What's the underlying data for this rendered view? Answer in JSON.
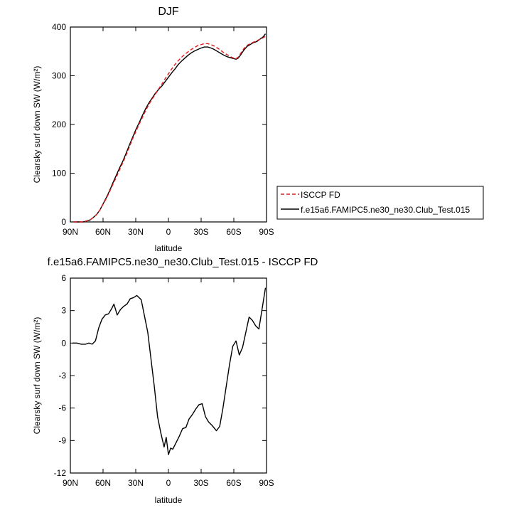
{
  "chart_data": [
    {
      "type": "line",
      "title": "DJF",
      "xlabel": "latitude",
      "ylabel": "Clearsky surf down SW (W/m²)",
      "xlim": [
        90,
        -90
      ],
      "ylim": [
        0,
        400
      ],
      "x_ticks": [
        90,
        60,
        30,
        0,
        -30,
        -60,
        -90
      ],
      "x_tick_labels": [
        "90N",
        "60N",
        "30N",
        "0",
        "30S",
        "60S",
        "90S"
      ],
      "y_ticks": [
        0,
        100,
        200,
        300,
        400
      ],
      "y_tick_labels": [
        "0",
        "100",
        "200",
        "300",
        "400"
      ],
      "legend_position": "right",
      "series": [
        {
          "name": "ISCCP FD",
          "color": "#e41a1c",
          "dash": "dashed",
          "x": [
            87,
            84,
            81,
            78,
            75,
            72,
            69,
            66,
            63,
            60,
            57,
            54,
            51,
            48,
            45,
            42,
            39,
            36,
            33,
            30,
            27,
            24,
            21,
            18,
            15,
            12,
            9,
            6,
            3,
            0,
            -3,
            -6,
            -9,
            -12,
            -15,
            -18,
            -21,
            -24,
            -27,
            -30,
            -33,
            -36,
            -39,
            -42,
            -45,
            -48,
            -51,
            -54,
            -57,
            -60,
            -62,
            -64,
            -66,
            -69,
            -72,
            -75,
            -78,
            -81,
            -84,
            -87,
            -89
          ],
          "y": [
            0,
            0,
            0,
            0,
            2,
            4,
            9,
            15,
            24,
            36,
            48,
            62,
            77,
            91,
            106,
            121,
            136,
            153,
            170,
            185,
            200,
            214,
            228,
            241,
            252,
            262,
            273,
            283,
            294,
            304,
            314,
            323,
            331,
            338,
            344,
            349,
            354,
            358,
            362,
            364,
            366,
            366,
            364,
            361,
            357,
            352,
            347,
            343,
            339,
            336,
            335,
            338,
            345,
            355,
            362,
            366,
            369,
            372,
            375,
            378,
            381
          ]
        },
        {
          "name": "f.e15a6.FAMIPC5.ne30_ne30.Club_Test.015",
          "color": "#000000",
          "dash": "solid",
          "x": [
            87,
            84,
            81,
            78,
            75,
            72,
            69,
            66,
            63,
            60,
            57,
            54,
            51,
            48,
            45,
            42,
            39,
            36,
            33,
            30,
            27,
            24,
            21,
            18,
            15,
            12,
            9,
            6,
            3,
            0,
            -3,
            -6,
            -9,
            -12,
            -15,
            -18,
            -21,
            -24,
            -27,
            -30,
            -33,
            -36,
            -39,
            -42,
            -45,
            -48,
            -51,
            -54,
            -57,
            -60,
            -62,
            -64,
            -66,
            -69,
            -72,
            -75,
            -78,
            -81,
            -84,
            -87,
            -89
          ],
          "y": [
            0,
            0,
            0,
            0,
            2,
            4,
            9,
            15,
            24,
            37,
            50,
            64,
            80,
            95,
            110,
            124,
            140,
            157,
            173,
            189,
            203,
            218,
            232,
            244,
            254,
            264,
            272,
            279,
            288,
            297,
            306,
            314,
            323,
            330,
            336,
            342,
            347,
            351,
            354,
            357,
            359,
            359,
            357,
            354,
            350,
            346,
            342,
            339,
            337,
            335,
            334,
            336,
            342,
            352,
            360,
            364,
            368,
            370,
            375,
            380,
            386
          ]
        }
      ]
    },
    {
      "type": "line",
      "title": "f.e15a6.FAMIPC5.ne30_ne30.Club_Test.015 - ISCCP FD",
      "xlabel": "latitude",
      "ylabel": "Clearsky surf down SW (W/m²)",
      "xlim": [
        90,
        -90
      ],
      "ylim": [
        -12,
        6
      ],
      "x_ticks": [
        90,
        60,
        30,
        0,
        -30,
        -60,
        -90
      ],
      "x_tick_labels": [
        "90N",
        "60N",
        "30N",
        "0",
        "30S",
        "60S",
        "90S"
      ],
      "y_ticks": [
        -12,
        -9,
        -6,
        -3,
        0,
        3,
        6
      ],
      "y_tick_labels": [
        "-12",
        "-9",
        "-6",
        "-3",
        "0",
        "3",
        "6"
      ],
      "series": [
        {
          "color": "#000000",
          "dash": "solid",
          "x": [
            88,
            84,
            80,
            76,
            73,
            70,
            67,
            64,
            61,
            58,
            55,
            52,
            50,
            47,
            44,
            41,
            38,
            35,
            32,
            29,
            25,
            22,
            19,
            16,
            13,
            10,
            7,
            4,
            2,
            0,
            -2,
            -4,
            -7,
            -10,
            -13,
            -16,
            -19,
            -22,
            -25,
            -28,
            -31,
            -34,
            -37,
            -40,
            -44,
            -47,
            -50,
            -53,
            -56,
            -59,
            -62,
            -65,
            -68,
            -71,
            -74,
            -77,
            -80,
            -83,
            -86,
            -89
          ],
          "y": [
            0,
            0,
            -0.1,
            -0.1,
            0,
            -0.1,
            0.2,
            1.4,
            2.2,
            2.6,
            2.7,
            3.2,
            3.6,
            2.6,
            3.1,
            3.4,
            3.6,
            4.1,
            4.2,
            4.4,
            4.0,
            2.5,
            1.0,
            -1.5,
            -4.0,
            -6.8,
            -8.3,
            -9.6,
            -8.7,
            -10.3,
            -9.7,
            -9.8,
            -9.2,
            -8.6,
            -7.9,
            -7.8,
            -7.0,
            -6.6,
            -6.1,
            -5.7,
            -5.6,
            -6.8,
            -7.3,
            -7.6,
            -8.1,
            -7.7,
            -6.0,
            -4.0,
            -2.0,
            -0.3,
            0.2,
            -1.1,
            -0.4,
            1.0,
            2.4,
            2.1,
            1.6,
            1.3,
            3.2,
            5.1
          ]
        }
      ]
    }
  ]
}
